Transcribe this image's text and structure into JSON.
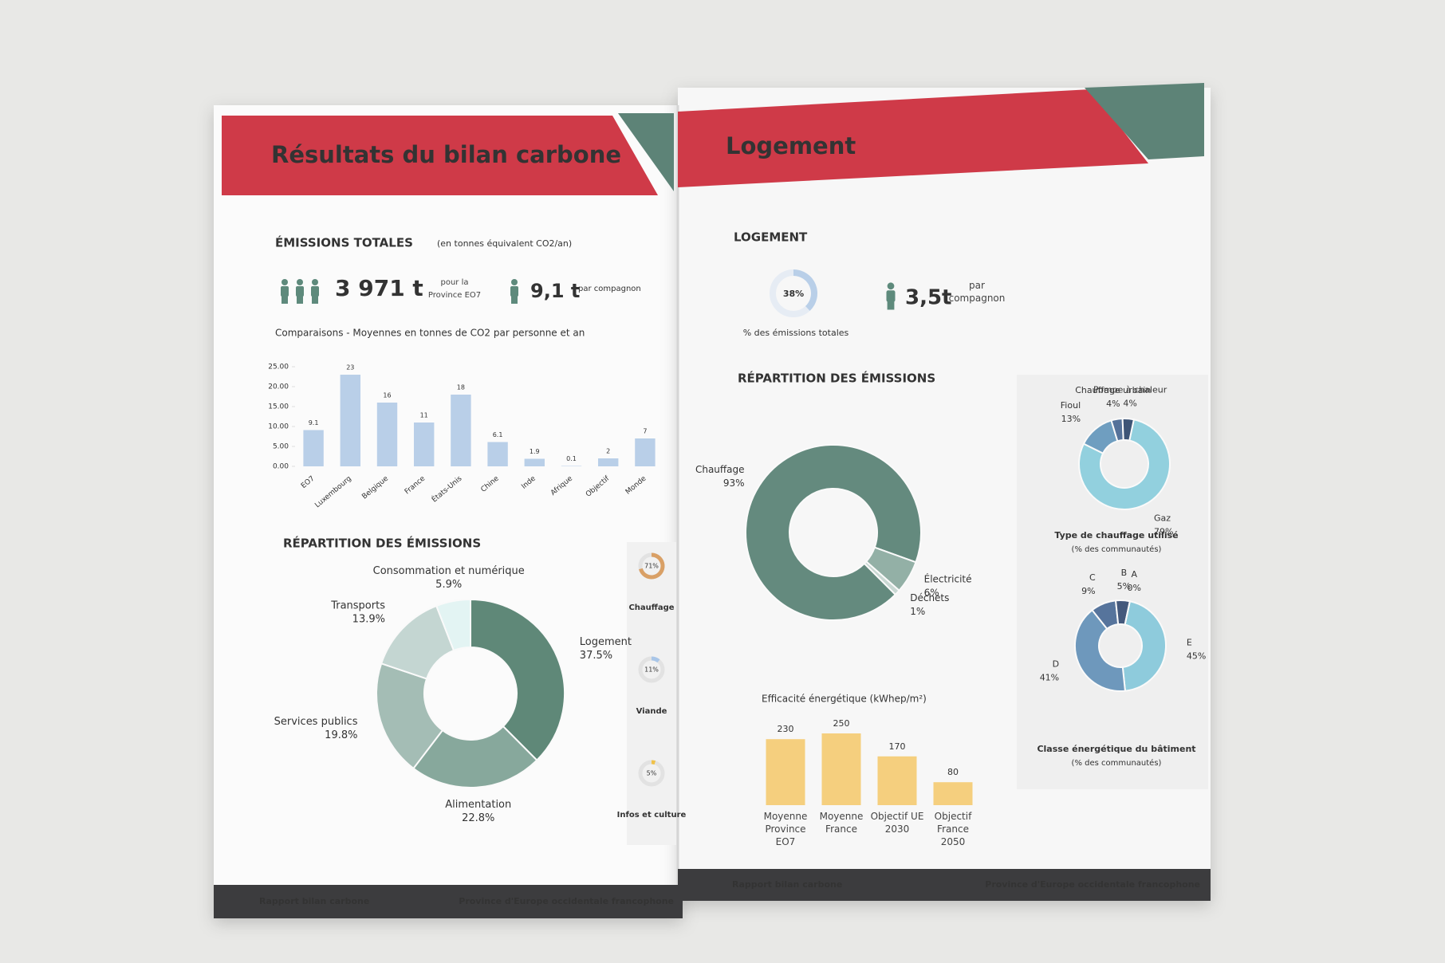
{
  "left_page": {
    "header_title": "Résultats du bilan carbone",
    "totals": {
      "title": "ÉMISSIONS TOTALES",
      "unit": "(en tonnes équivalent CO2/an)",
      "total": "3 971 t",
      "total_note": "pour la Province EO7",
      "per_person": "9,1 t",
      "per_person_note": "par compagnon"
    },
    "comparison_chart": {
      "type": "bar",
      "title": "Comparaisons - Moyennes en tonnes de CO2 par personne et an",
      "categories": [
        "EO7",
        "Luxembourg",
        "Belgique",
        "France",
        "États-Unis",
        "Chine",
        "Inde",
        "Afrique",
        "Objectif",
        "Monde"
      ],
      "values": [
        9.1,
        23,
        16,
        11,
        18,
        6.1,
        1.9,
        0.1,
        2,
        7
      ],
      "color": "#b9cfe8",
      "ylim": [
        0,
        25
      ],
      "yticks": [
        {
          "value": 0,
          "label": "0.00"
        },
        {
          "value": 5,
          "label": "5.00"
        },
        {
          "value": 10,
          "label": "10.00"
        },
        {
          "value": 15,
          "label": "15.00"
        },
        {
          "value": 20,
          "label": "20.00"
        },
        {
          "value": 25,
          "label": "25.00"
        }
      ]
    },
    "repartition": {
      "type": "donut",
      "title": "RÉPARTITION DES ÉMISSIONS",
      "categories": [
        "Logement",
        "Alimentation",
        "Services publics",
        "Transports",
        "Consommation et numérique"
      ],
      "values": [
        37.5,
        22.8,
        19.8,
        13.9,
        5.9
      ],
      "value_labels": [
        "37.5%",
        "22.8%",
        "19.8%",
        "13.9%",
        "5.9%"
      ],
      "colors": [
        "#5f8878",
        "#87a89c",
        "#a4bdb5",
        "#c4d6d2",
        "#e3f4f3"
      ]
    },
    "highlights": [
      {
        "label": "Chauffage",
        "value": 71,
        "value_label": "71%",
        "color": "#d9a066"
      },
      {
        "label": "Viande",
        "value": 11,
        "value_label": "11%",
        "color": "#a9c6e8"
      },
      {
        "label": "Infos et culture",
        "value": 5,
        "value_label": "5%",
        "color": "#f0c24a"
      }
    ],
    "footer_left": "Rapport bilan carbone",
    "footer_right": "Province d'Europe occidentale francophone"
  },
  "right_page": {
    "header_title": "Logement",
    "logement": {
      "title": "LOGEMENT",
      "share": 38,
      "share_label": "38%",
      "share_caption": "% des émissions totales",
      "per_person": "3,5t",
      "per_person_note": "par compagnon"
    },
    "repartition": {
      "type": "donut",
      "title": "RÉPARTITION DES ÉMISSIONS",
      "categories": [
        "Chauffage",
        "Électricité",
        "Déchets"
      ],
      "values": [
        93,
        6,
        1
      ],
      "value_labels": [
        "93%",
        "6%",
        "1%"
      ],
      "colors": [
        "#648a7e",
        "#93b0a6",
        "#c9d8d3"
      ]
    },
    "chauffage_type": {
      "type": "donut",
      "title": "Type de chauffage utilisé",
      "subtitle": "(% des communautés)",
      "categories": [
        "Gaz",
        "Fioul",
        "Chauffage urbain",
        "Pompe à chaleur"
      ],
      "values": [
        79,
        13,
        4,
        4
      ],
      "value_labels": [
        "79%",
        "13%",
        "4%",
        "4%"
      ],
      "colors": [
        "#92d0de",
        "#6f9ec0",
        "#55729a",
        "#3d5476"
      ]
    },
    "classe_energetique": {
      "type": "donut",
      "title": "Classe énergétique du bâtiment",
      "subtitle": "(% des communautés)",
      "categories": [
        "E",
        "D",
        "C",
        "B",
        "A"
      ],
      "values": [
        45,
        41,
        9,
        5,
        0
      ],
      "value_labels": [
        "45%",
        "41%",
        "9%",
        "5%",
        "0%"
      ],
      "colors": [
        "#8ecbdc",
        "#6e98bc",
        "#56749c",
        "#44597c",
        "#2f3f5e"
      ]
    },
    "efficacite": {
      "type": "bar",
      "title": "Efficacité énergétique (kWhep/m²)",
      "categories": [
        "Moyenne Province EO7",
        "Moyenne France",
        "Objectif UE 2030",
        "Objectif France 2050"
      ],
      "values": [
        230,
        250,
        170,
        80
      ],
      "color": "#f5cf7e"
    },
    "footer_left": "Rapport bilan carbone",
    "footer_right": "Province d'Europe occidentale francophone"
  }
}
